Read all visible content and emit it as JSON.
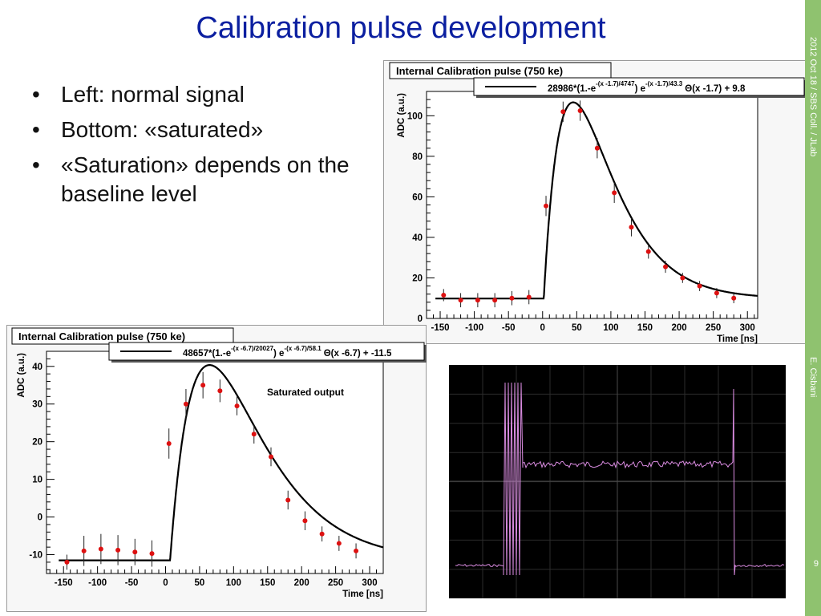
{
  "slide": {
    "title": "Calibration pulse development",
    "bullets": [
      "Left: normal signal",
      "Bottom: «saturated»",
      "«Saturation» depends on the baseline level"
    ],
    "footer_date": "2012 Oct 18 / SBS Coll. / JLab",
    "footer_author": "E. Cisbani",
    "page_number": "9"
  },
  "colors": {
    "title": "#0b1fa0",
    "sidebar": "#8fc26f",
    "points": "#dd1111",
    "fit": "#000000",
    "scope_trace": "#d98be0"
  },
  "chart_data": [
    {
      "type": "scatter",
      "title": "Internal Calibration pulse (750 ke)",
      "fit_label": "28986*(1.-e^(-(x -1.7)/4747)) e^(-(x -1.7)/43.3) Θ(x -1.7) + 9.8",
      "fit_text": {
        "prefix": "28986*(1.-e",
        "exp1": "-(x -1.7)/4747",
        "mid": ") e",
        "exp2": "-(x -1.7)/43.3",
        "suffix": "Θ(x -1.7) + 9.8"
      },
      "xlabel": "Time [ns]",
      "ylabel": "ADC (a.u.)",
      "xlim": [
        -170,
        315
      ],
      "ylim": [
        0,
        112
      ],
      "xticks": [
        -150,
        -100,
        -50,
        0,
        50,
        100,
        150,
        200,
        250,
        300
      ],
      "yticks": [
        0,
        20,
        40,
        60,
        80,
        100
      ],
      "fit_params": {
        "A": 28986,
        "t0": 1.7,
        "tau1": 4747,
        "tau2": 43.3,
        "baseline": 9.8
      },
      "x": [
        -145,
        -120,
        -95,
        -70,
        -45,
        -20,
        5,
        30,
        55,
        80,
        105,
        130,
        155,
        180,
        205,
        230,
        255,
        280
      ],
      "y": [
        11.5,
        9,
        9,
        9,
        10,
        10.5,
        55.5,
        102,
        102.5,
        84,
        62,
        45,
        33,
        25.5,
        20,
        16,
        12.5,
        10
      ],
      "yerr": [
        3,
        3.5,
        3.5,
        3.5,
        3.5,
        3.5,
        5,
        5,
        5,
        5,
        5,
        4.5,
        3.5,
        3,
        2.5,
        2.5,
        2.5,
        2.5
      ]
    },
    {
      "type": "scatter",
      "title": "Internal Calibration pulse (750 ke)",
      "annotation": "Saturated output",
      "fit_label": "48657*(1.-e^(-(x -6.7)/20027)) e^(-(x -6.7)/58.1) Θ(x -6.7) + -11.5",
      "fit_text": {
        "prefix": "48657*(1.-e",
        "exp1": "-(x -6.7)/20027",
        "mid": ") e",
        "exp2": "-(x -6.7)/58.1",
        "suffix": "Θ(x -6.7) + -11.5"
      },
      "xlabel": "Time [ns]",
      "ylabel": "ADC (a.u.)",
      "xlim": [
        -175,
        320
      ],
      "ylim": [
        -15,
        44
      ],
      "xticks": [
        -150,
        -100,
        -50,
        0,
        50,
        100,
        150,
        200,
        250,
        300
      ],
      "yticks": [
        -10,
        0,
        10,
        20,
        30,
        40
      ],
      "fit_params": {
        "A": 48657,
        "t0": 6.7,
        "tau1": 20027,
        "tau2": 58.1,
        "baseline": -11.5
      },
      "x": [
        -145,
        -120,
        -95,
        -70,
        -45,
        -20,
        5,
        30,
        55,
        80,
        105,
        130,
        155,
        180,
        205,
        230,
        255,
        280
      ],
      "y": [
        -12,
        -9,
        -8.5,
        -8.8,
        -9.3,
        -9.7,
        19.5,
        30,
        35,
        33.5,
        29.5,
        22,
        16,
        4.5,
        -1,
        -4.5,
        -7,
        -9
      ],
      "yerr": [
        2,
        4,
        4,
        4,
        3.5,
        3.5,
        4,
        4,
        3.5,
        3,
        2.5,
        2.5,
        2.5,
        2.5,
        2.5,
        2,
        2,
        2
      ]
    }
  ]
}
